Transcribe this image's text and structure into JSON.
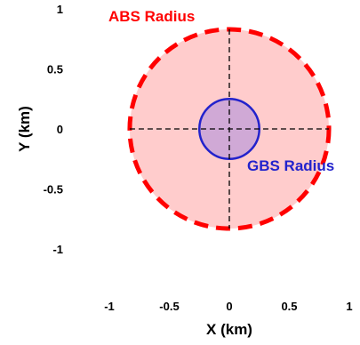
{
  "chart_data": {
    "type": "scatter",
    "title": "",
    "xlabel": "X (km)",
    "ylabel": "Y (km)",
    "xlim": [
      -1,
      1
    ],
    "ylim": [
      -1,
      1
    ],
    "xticks": [
      -1,
      -0.5,
      0,
      0.5,
      1
    ],
    "yticks": [
      1,
      0.5,
      0,
      -0.5,
      -1
    ],
    "xtick_labels": [
      "-1",
      "-0.5",
      "0",
      "0.5",
      "1"
    ],
    "ytick_labels": [
      "1",
      "0.5",
      "0",
      "-0.5",
      "-1"
    ],
    "grid": false,
    "crosshair": {
      "x_range": [
        -0.83,
        0.83
      ],
      "y_range": [
        -0.83,
        0.83
      ],
      "color": "#000000",
      "dash": "dashed"
    },
    "circles": [
      {
        "name": "ABS Radius",
        "center": [
          0,
          0
        ],
        "radius": 0.83,
        "fill": "#ffcccc",
        "stroke": "#ff0000",
        "stroke_style": "dashed"
      },
      {
        "name": "GBS Radius",
        "center": [
          0,
          0
        ],
        "radius": 0.25,
        "fill": "#cda6d6",
        "stroke": "#2222cc",
        "stroke_style": "solid"
      }
    ],
    "annotations": [
      {
        "text": "ABS Radius",
        "color": "#ff0000"
      },
      {
        "text": "GBS Radius",
        "color": "#2222cc"
      }
    ]
  }
}
